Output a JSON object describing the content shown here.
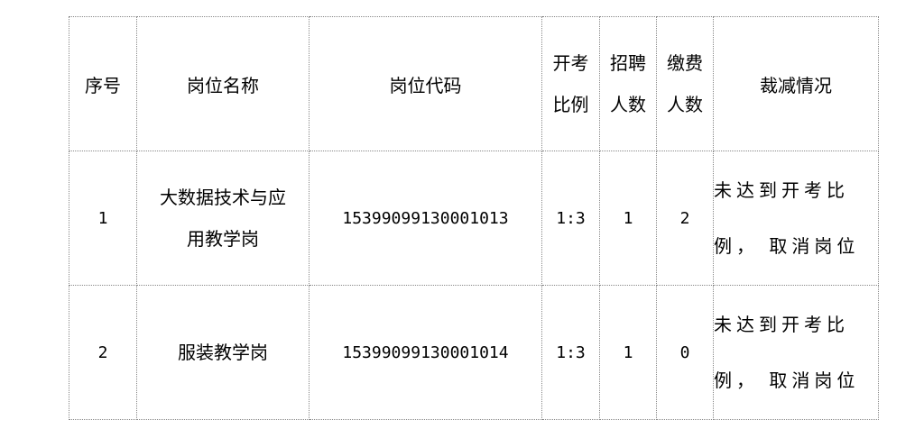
{
  "table": {
    "headers": {
      "index": "序号",
      "post_name": "岗位名称",
      "post_code": "岗位代码",
      "exam_ratio": [
        "开考",
        "比例"
      ],
      "hire_count": [
        "招聘",
        "人数"
      ],
      "paid_count": [
        "缴费",
        "人数"
      ],
      "reduction": "裁减情况"
    },
    "rows": [
      {
        "index": "1",
        "post_name": [
          "大数据技术与应",
          "用教学岗"
        ],
        "post_code": "15399099130001013",
        "exam_ratio": "1:3",
        "hire_count": "1",
        "paid_count": "2",
        "reduction": [
          "未达到开考比",
          "例， 取消岗位"
        ]
      },
      {
        "index": "2",
        "post_name": [
          "服装教学岗"
        ],
        "post_code": "15399099130001014",
        "exam_ratio": "1:3",
        "hire_count": "1",
        "paid_count": "0",
        "reduction": [
          "未达到开考比",
          "例， 取消岗位"
        ]
      }
    ]
  }
}
